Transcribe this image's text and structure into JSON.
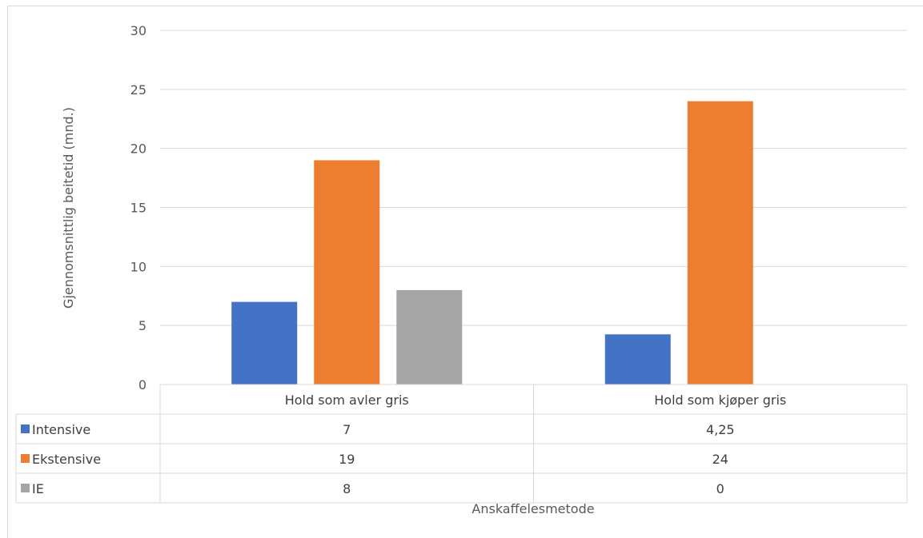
{
  "chart_data": {
    "type": "bar",
    "ylabel": "Gjennomsnittlig beitetid (mnd.)",
    "xlabel": "Anskaffelesmetode",
    "ylim": [
      0,
      30
    ],
    "yticks": [
      0,
      5,
      10,
      15,
      20,
      25,
      30
    ],
    "grid": true,
    "legend": "data-table",
    "categories": [
      "Hold som avler gris",
      "Hold som kjøper gris"
    ],
    "series": [
      {
        "name": "Intensive",
        "color": "#4472c4",
        "values": [
          7,
          4.25
        ],
        "labels": [
          "7",
          "4,25"
        ]
      },
      {
        "name": "Ekstensive",
        "color": "#ed7d31",
        "values": [
          19,
          24
        ],
        "labels": [
          "19",
          "24"
        ]
      },
      {
        "name": "IE",
        "color": "#a5a5a5",
        "values": [
          8,
          0
        ],
        "labels": [
          "8",
          "0"
        ]
      }
    ]
  }
}
